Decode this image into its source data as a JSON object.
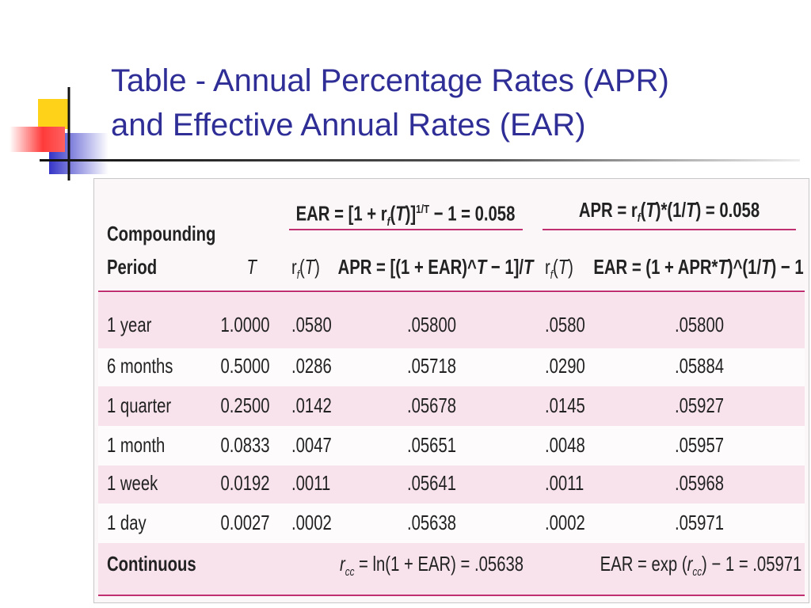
{
  "title": [
    "Table - Annual Percentage Rates (APR)",
    "and Effective Annual Rates (EAR)"
  ],
  "table": {
    "group_headers": [
      [
        "EAR = [1 + r",
        "f",
        "(",
        "T",
        ")]",
        "1/T",
        " − 1 = 0.058"
      ],
      [
        "APR = r",
        "f",
        "(",
        "T",
        ")*(1/",
        "T",
        ") = 0.058"
      ]
    ],
    "columns": [
      [
        "Compounding",
        "Period"
      ],
      [
        "T"
      ],
      [
        "r",
        "f",
        "(",
        "T",
        ")"
      ],
      [
        "APR = [(1 + EAR)^",
        "T",
        " − 1]/",
        "T"
      ],
      [
        "r",
        "f",
        "(",
        "T",
        ")"
      ],
      [
        "EAR = (1 + APR*",
        "T",
        ")^(1/",
        "T",
        ") − 1"
      ]
    ],
    "rows": [
      [
        "1 year",
        "1.0000",
        ".0580",
        ".05800",
        ".0580",
        ".05800"
      ],
      [
        "6 months",
        "0.5000",
        ".0286",
        ".05718",
        ".0290",
        ".05884"
      ],
      [
        "1 quarter",
        "0.2500",
        ".0142",
        ".05678",
        ".0145",
        ".05927"
      ],
      [
        "1 month",
        "0.0833",
        ".0047",
        ".05651",
        ".0048",
        ".05957"
      ],
      [
        "1 week",
        "0.0192",
        ".0011",
        ".05641",
        ".0011",
        ".05968"
      ],
      [
        "1 day",
        "0.0027",
        ".0002",
        ".05638",
        ".0002",
        ".05971"
      ]
    ],
    "continuous": {
      "label": "Continuous",
      "formula_1": [
        "r",
        "cc",
        " = ln(1 + EAR) = .05638"
      ],
      "formula_2": [
        "EAR = exp (",
        "r",
        "cc",
        ") − 1 = .05971"
      ]
    }
  }
}
